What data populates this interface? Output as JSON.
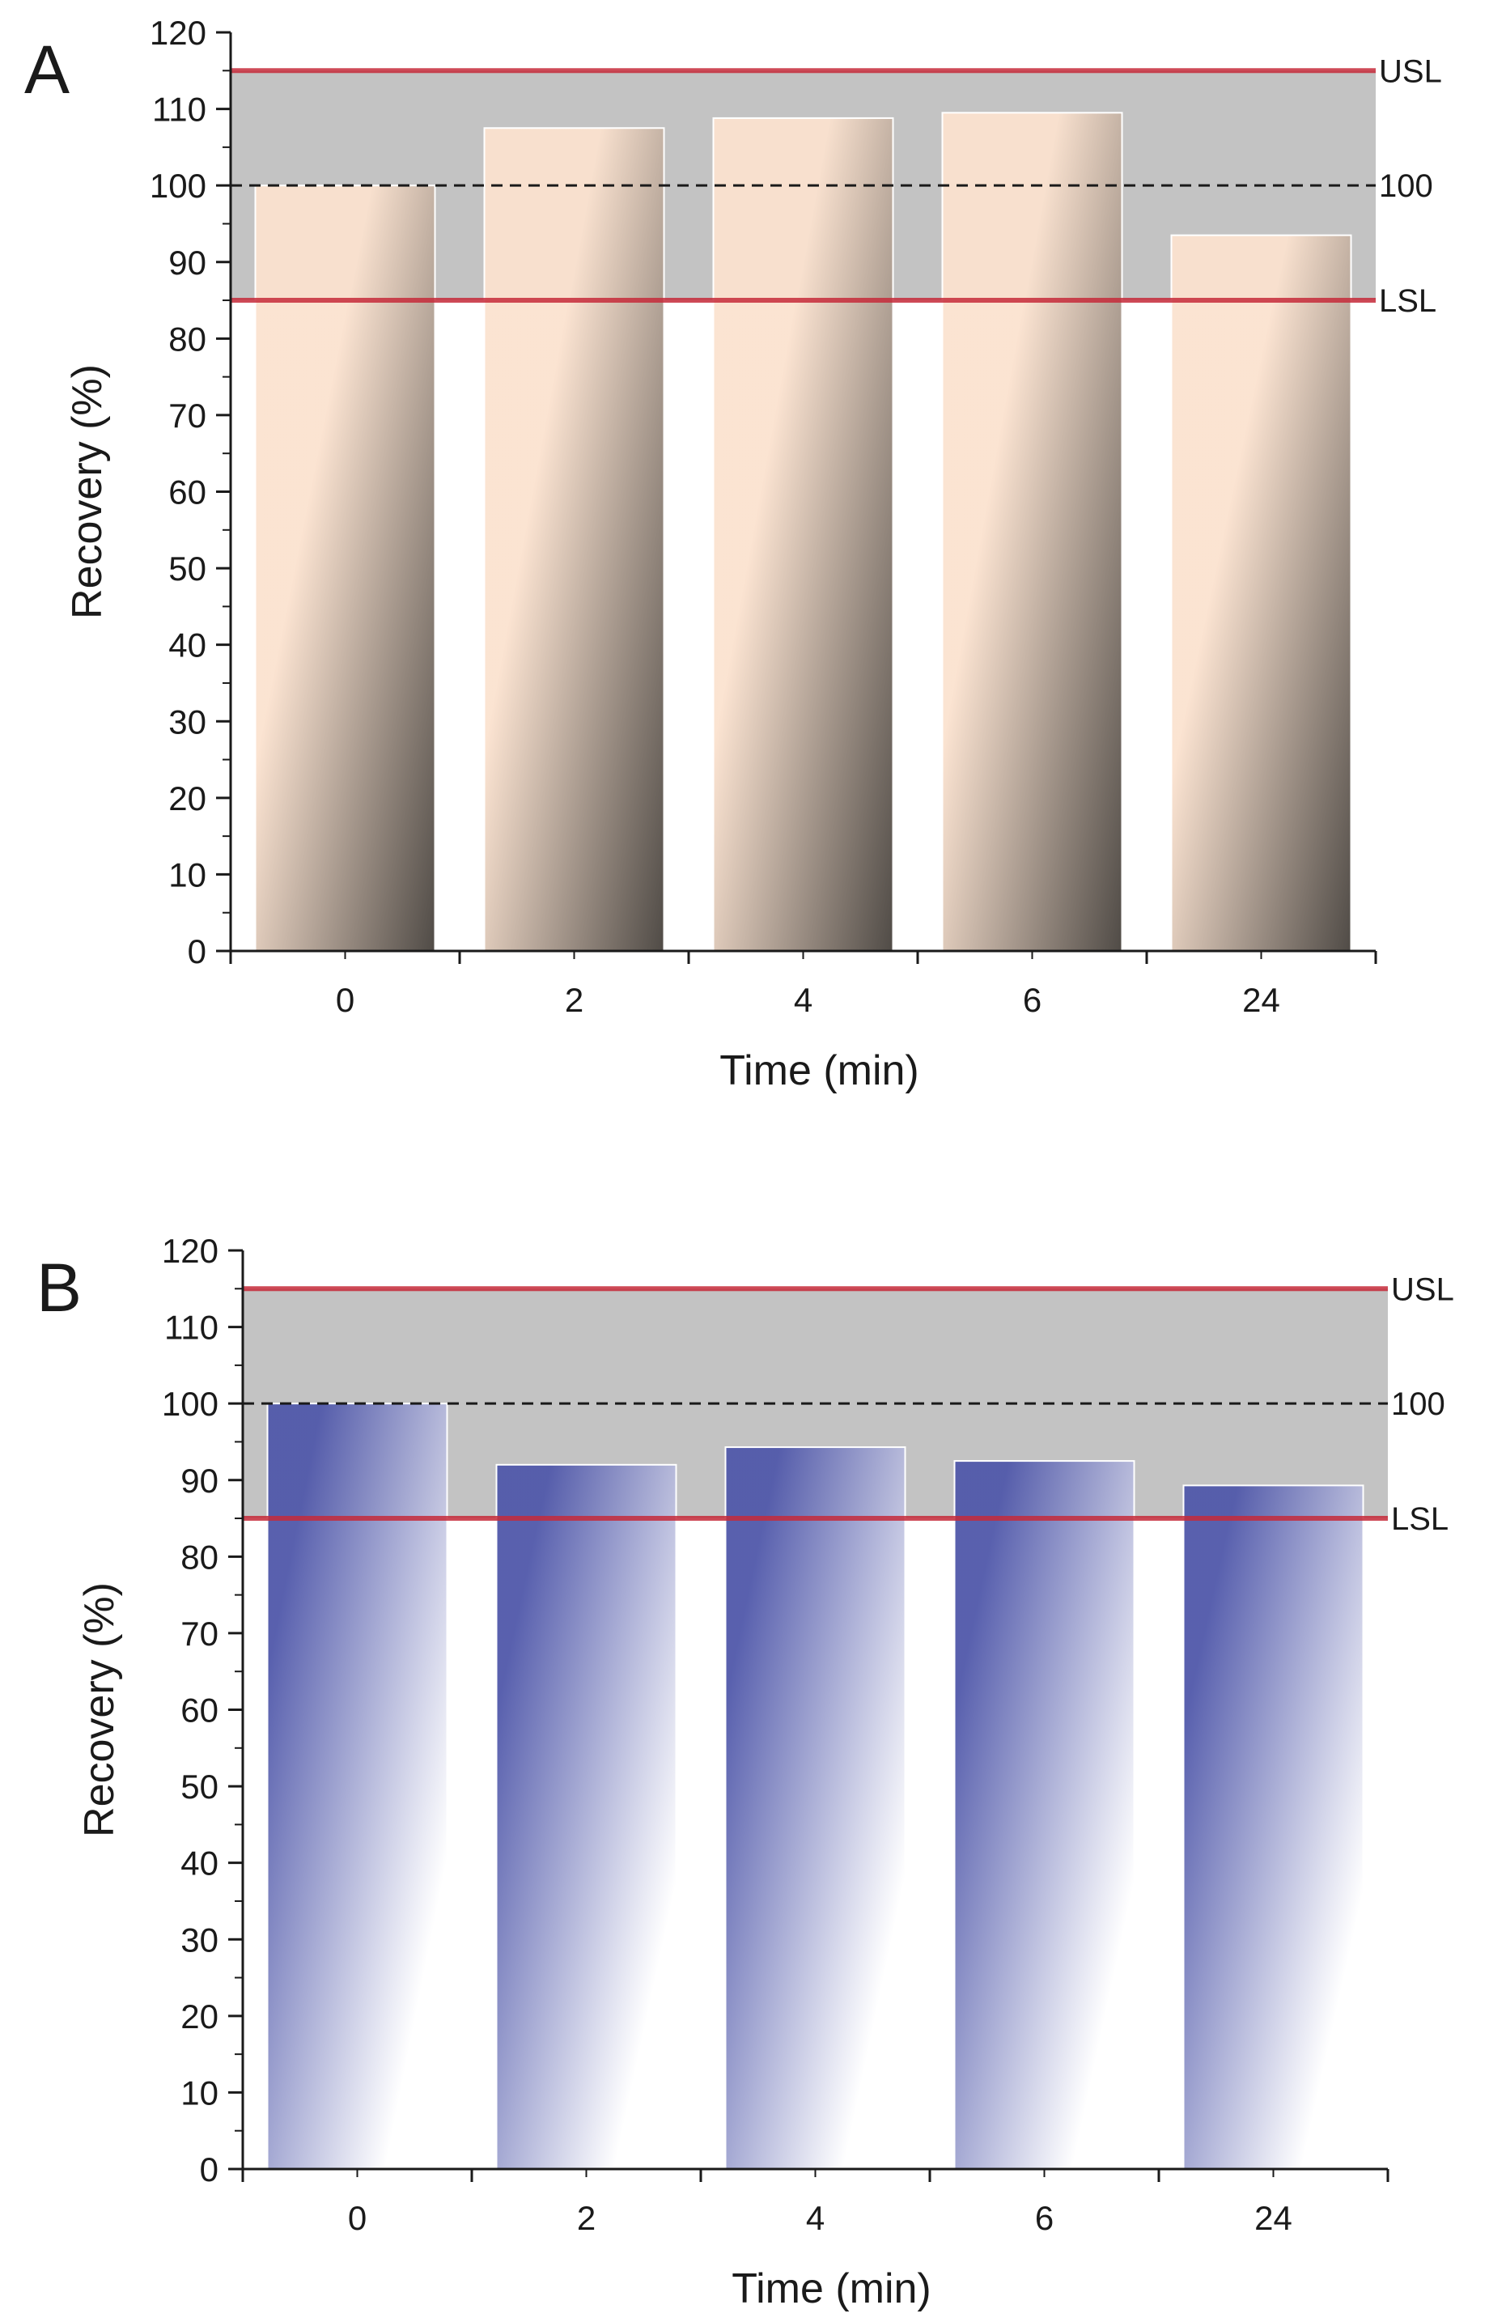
{
  "chart_data": [
    {
      "type": "bar",
      "panel_label": "A",
      "categories": [
        "0",
        "2",
        "4",
        "6",
        "24"
      ],
      "values": [
        100,
        107.5,
        108.8,
        109.5,
        93.5
      ],
      "xlabel": "Time (min)",
      "ylabel": "Recovery (%)",
      "ylim": [
        0,
        120
      ],
      "yticks": [
        0,
        10,
        20,
        30,
        40,
        50,
        60,
        70,
        80,
        90,
        100,
        110,
        120
      ],
      "spec_band": [
        85,
        115
      ],
      "reference_lines": [
        {
          "name": "USL",
          "value": 115,
          "label": "USL",
          "color": "#c62a3a",
          "style": "solid"
        },
        {
          "name": "target",
          "value": 100,
          "label": "100",
          "color": "#1a1a1a",
          "style": "dashed"
        },
        {
          "name": "LSL",
          "value": 85,
          "label": "LSL",
          "color": "#c62a3a",
          "style": "solid"
        }
      ],
      "band_color": "#c3c3c3",
      "bar_gradient": [
        "#fbe2cf",
        "#46413c"
      ]
    },
    {
      "type": "bar",
      "panel_label": "B",
      "categories": [
        "0",
        "2",
        "4",
        "6",
        "24"
      ],
      "values": [
        100,
        92,
        94.3,
        92.5,
        89.3
      ],
      "xlabel": "Time (min)",
      "ylabel": "Recovery (%)",
      "ylim": [
        0,
        120
      ],
      "yticks": [
        0,
        10,
        20,
        30,
        40,
        50,
        60,
        70,
        80,
        90,
        100,
        110,
        120
      ],
      "spec_band": [
        85,
        115
      ],
      "reference_lines": [
        {
          "name": "USL",
          "value": 115,
          "label": "USL",
          "color": "#c62a3a",
          "style": "solid"
        },
        {
          "name": "target",
          "value": 100,
          "label": "100",
          "color": "#1a1a1a",
          "style": "dashed"
        },
        {
          "name": "LSL",
          "value": 85,
          "label": "LSL",
          "color": "#c62a3a",
          "style": "solid"
        }
      ],
      "band_color": "#c3c3c3",
      "bar_gradient": [
        "#5058aa",
        "#ffffff"
      ]
    }
  ]
}
